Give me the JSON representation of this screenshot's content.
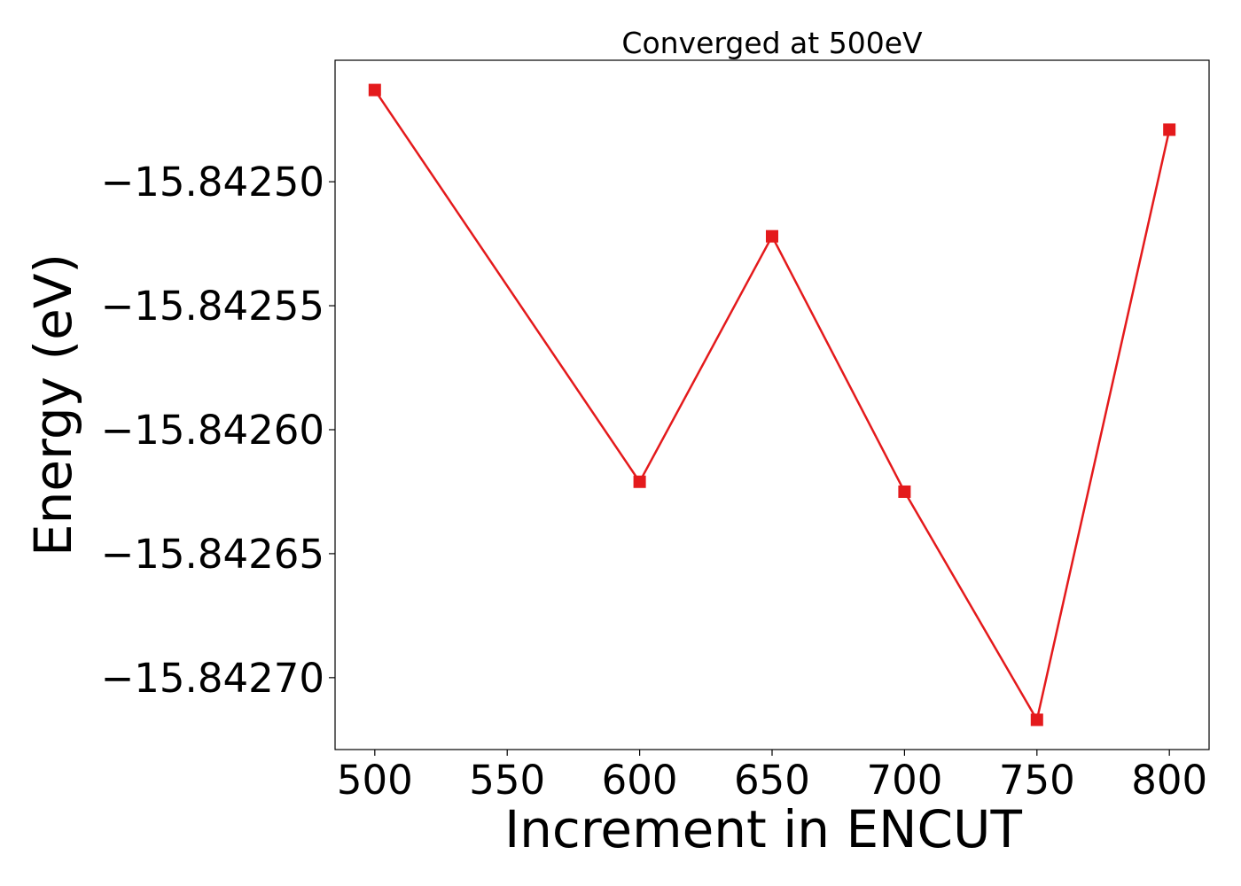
{
  "chart_data": {
    "type": "line",
    "title": "Converged at 500eV",
    "xlabel": "Increment in ENCUT",
    "ylabel": "Energy (eV)",
    "x": [
      500,
      600,
      650,
      700,
      750,
      800
    ],
    "series": [
      {
        "values": [
          -15.842463,
          -15.842621,
          -15.842522,
          -15.842625,
          -15.842717,
          -15.842479
        ],
        "color": "#e41a1c",
        "marker": "square"
      }
    ],
    "xlim": [
      485,
      815
    ],
    "ylim": [
      -15.842729,
      -15.842451
    ],
    "xticks": [
      500,
      550,
      600,
      650,
      700,
      750,
      800
    ],
    "xtick_labels": [
      "500",
      "550",
      "600",
      "650",
      "700",
      "750",
      "800"
    ],
    "yticks": [
      -15.8425,
      -15.84255,
      -15.8426,
      -15.84265,
      -15.8427
    ],
    "ytick_labels": [
      "−15.84250",
      "−15.84255",
      "−15.84260",
      "−15.84265",
      "−15.84270"
    ],
    "grid": false,
    "legend": "none"
  }
}
